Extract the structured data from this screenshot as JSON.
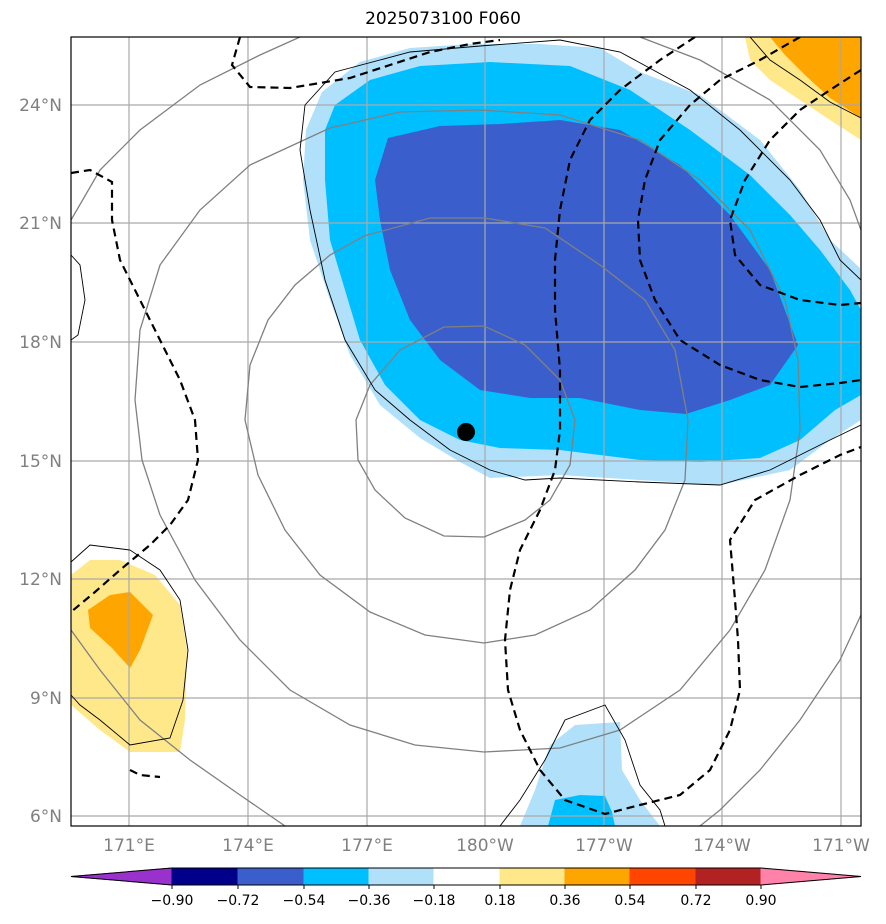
{
  "title": "2025073100 F060",
  "lat_labels": [
    "24°N",
    "21°N",
    "18°N",
    "15°N",
    "12°N",
    "9°N",
    "6°N"
  ],
  "lon_labels": [
    "171°E",
    "174°E",
    "177°E",
    "180°W",
    "177°W",
    "174°W",
    "171°W"
  ],
  "colorbar": {
    "ticks": [
      "−0.90",
      "−0.72",
      "−0.54",
      "−0.36",
      "−0.18",
      "0.18",
      "0.36",
      "0.54",
      "0.72",
      "0.90"
    ],
    "colors": [
      "#9932cc",
      "#00008b",
      "#3a5fcd",
      "#00bfff",
      "#b0e0fa",
      "#ffffff",
      "#ffe88a",
      "#ffa500",
      "#ff4500",
      "#b22222",
      "#ff82ab"
    ]
  },
  "marker": "storm-center-dot"
}
